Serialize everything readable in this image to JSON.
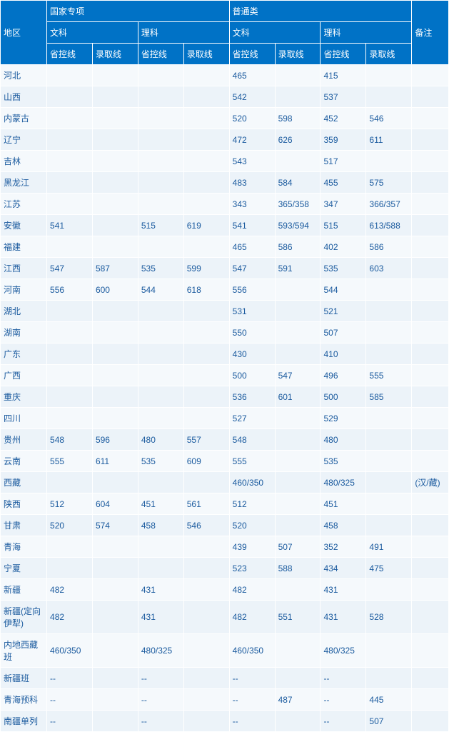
{
  "headers": {
    "region": "地区",
    "group1": "国家专项",
    "group2": "普通类",
    "note": "备注",
    "sub_wen": "文科",
    "sub_li": "理科",
    "col_shengkong": "省控线",
    "col_luqu": "录取线"
  },
  "rows": [
    {
      "region": "河北",
      "gw_s": "",
      "gw_l": "",
      "gl_s": "",
      "gl_l": "",
      "pw_s": "465",
      "pw_l": "",
      "pl_s": "415",
      "pl_l": "",
      "note": ""
    },
    {
      "region": "山西",
      "gw_s": "",
      "gw_l": "",
      "gl_s": "",
      "gl_l": "",
      "pw_s": "542",
      "pw_l": "",
      "pl_s": "537",
      "pl_l": "",
      "note": ""
    },
    {
      "region": "内蒙古",
      "gw_s": "",
      "gw_l": "",
      "gl_s": "",
      "gl_l": "",
      "pw_s": "520",
      "pw_l": "598",
      "pl_s": "452",
      "pl_l": "546",
      "note": ""
    },
    {
      "region": "辽宁",
      "gw_s": "",
      "gw_l": "",
      "gl_s": "",
      "gl_l": "",
      "pw_s": "472",
      "pw_l": "626",
      "pl_s": "359",
      "pl_l": "611",
      "note": ""
    },
    {
      "region": "吉林",
      "gw_s": "",
      "gw_l": "",
      "gl_s": "",
      "gl_l": "",
      "pw_s": "543",
      "pw_l": "",
      "pl_s": "517",
      "pl_l": "",
      "note": ""
    },
    {
      "region": "黑龙江",
      "gw_s": "",
      "gw_l": "",
      "gl_s": "",
      "gl_l": "",
      "pw_s": "483",
      "pw_l": "584",
      "pl_s": "455",
      "pl_l": "575",
      "note": ""
    },
    {
      "region": "江苏",
      "gw_s": "",
      "gw_l": "",
      "gl_s": "",
      "gl_l": "",
      "pw_s": "343",
      "pw_l": "365/358",
      "pl_s": "347",
      "pl_l": "366/357",
      "note": ""
    },
    {
      "region": "安徽",
      "gw_s": "541",
      "gw_l": "",
      "gl_s": "515",
      "gl_l": "619",
      "pw_s": "541",
      "pw_l": "593/594",
      "pl_s": "515",
      "pl_l": "613/588",
      "note": ""
    },
    {
      "region": "福建",
      "gw_s": "",
      "gw_l": "",
      "gl_s": "",
      "gl_l": "",
      "pw_s": "465",
      "pw_l": "586",
      "pl_s": "402",
      "pl_l": "586",
      "note": ""
    },
    {
      "region": "江西",
      "gw_s": "547",
      "gw_l": "587",
      "gl_s": "535",
      "gl_l": "599",
      "pw_s": "547",
      "pw_l": "591",
      "pl_s": "535",
      "pl_l": "603",
      "note": ""
    },
    {
      "region": "河南",
      "gw_s": "556",
      "gw_l": "600",
      "gl_s": "544",
      "gl_l": "618",
      "pw_s": "556",
      "pw_l": "",
      "pl_s": "544",
      "pl_l": "",
      "note": ""
    },
    {
      "region": "湖北",
      "gw_s": "",
      "gw_l": "",
      "gl_s": "",
      "gl_l": "",
      "pw_s": "531",
      "pw_l": "",
      "pl_s": "521",
      "pl_l": "",
      "note": ""
    },
    {
      "region": "湖南",
      "gw_s": "",
      "gw_l": "",
      "gl_s": "",
      "gl_l": "",
      "pw_s": "550",
      "pw_l": "",
      "pl_s": "507",
      "pl_l": "",
      "note": ""
    },
    {
      "region": "广东",
      "gw_s": "",
      "gw_l": "",
      "gl_s": "",
      "gl_l": "",
      "pw_s": "430",
      "pw_l": "",
      "pl_s": "410",
      "pl_l": "",
      "note": ""
    },
    {
      "region": "广西",
      "gw_s": "",
      "gw_l": "",
      "gl_s": "",
      "gl_l": "",
      "pw_s": "500",
      "pw_l": "547",
      "pl_s": "496",
      "pl_l": "555",
      "note": ""
    },
    {
      "region": "重庆",
      "gw_s": "",
      "gw_l": "",
      "gl_s": "",
      "gl_l": "",
      "pw_s": "536",
      "pw_l": "601",
      "pl_s": "500",
      "pl_l": "585",
      "note": ""
    },
    {
      "region": "四川",
      "gw_s": "",
      "gw_l": "",
      "gl_s": "",
      "gl_l": "",
      "pw_s": "527",
      "pw_l": "",
      "pl_s": "529",
      "pl_l": "",
      "note": ""
    },
    {
      "region": "贵州",
      "gw_s": "548",
      "gw_l": "596",
      "gl_s": "480",
      "gl_l": "557",
      "pw_s": "548",
      "pw_l": "",
      "pl_s": "480",
      "pl_l": "",
      "note": ""
    },
    {
      "region": "云南",
      "gw_s": "555",
      "gw_l": "611",
      "gl_s": "535",
      "gl_l": "609",
      "pw_s": "555",
      "pw_l": "",
      "pl_s": "535",
      "pl_l": "",
      "note": ""
    },
    {
      "region": "西藏",
      "gw_s": "",
      "gw_l": "",
      "gl_s": "",
      "gl_l": "",
      "pw_s": "460/350",
      "pw_l": "",
      "pl_s": "480/325",
      "pl_l": "",
      "note": "(汉/藏)"
    },
    {
      "region": "陕西",
      "gw_s": "512",
      "gw_l": "604",
      "gl_s": "451",
      "gl_l": "561",
      "pw_s": "512",
      "pw_l": "",
      "pl_s": "451",
      "pl_l": "",
      "note": ""
    },
    {
      "region": "甘肃",
      "gw_s": "520",
      "gw_l": "574",
      "gl_s": "458",
      "gl_l": "546",
      "pw_s": "520",
      "pw_l": "",
      "pl_s": "458",
      "pl_l": "",
      "note": ""
    },
    {
      "region": "青海",
      "gw_s": "",
      "gw_l": "",
      "gl_s": "",
      "gl_l": "",
      "pw_s": "439",
      "pw_l": "507",
      "pl_s": "352",
      "pl_l": "491",
      "note": ""
    },
    {
      "region": "宁夏",
      "gw_s": "",
      "gw_l": "",
      "gl_s": "",
      "gl_l": "",
      "pw_s": "523",
      "pw_l": "588",
      "pl_s": "434",
      "pl_l": "475",
      "note": ""
    },
    {
      "region": "新疆",
      "gw_s": "482",
      "gw_l": "",
      "gl_s": "431",
      "gl_l": "",
      "pw_s": "482",
      "pw_l": "",
      "pl_s": "431",
      "pl_l": "",
      "note": ""
    },
    {
      "region": "新疆(定向伊犁)",
      "gw_s": "482",
      "gw_l": "",
      "gl_s": "431",
      "gl_l": "",
      "pw_s": "482",
      "pw_l": "551",
      "pl_s": "431",
      "pl_l": "528",
      "note": ""
    },
    {
      "region": "内地西藏班",
      "gw_s": "460/350",
      "gw_l": "",
      "gl_s": "480/325",
      "gl_l": "",
      "pw_s": "460/350",
      "pw_l": "",
      "pl_s": "480/325",
      "pl_l": "",
      "note": ""
    },
    {
      "region": "新疆班",
      "gw_s": "--",
      "gw_l": "",
      "gl_s": "--",
      "gl_l": "",
      "pw_s": "--",
      "pw_l": "",
      "pl_s": "--",
      "pl_l": "",
      "note": ""
    },
    {
      "region": "青海预科",
      "gw_s": "--",
      "gw_l": "",
      "gl_s": "--",
      "gl_l": "",
      "pw_s": "--",
      "pw_l": "487",
      "pl_s": "--",
      "pl_l": "445",
      "note": ""
    },
    {
      "region": "南疆单列",
      "gw_s": "--",
      "gw_l": "",
      "gl_s": "--",
      "gl_l": "",
      "pw_s": "--",
      "pw_l": "",
      "pl_s": "--",
      "pl_l": "507",
      "note": ""
    }
  ]
}
